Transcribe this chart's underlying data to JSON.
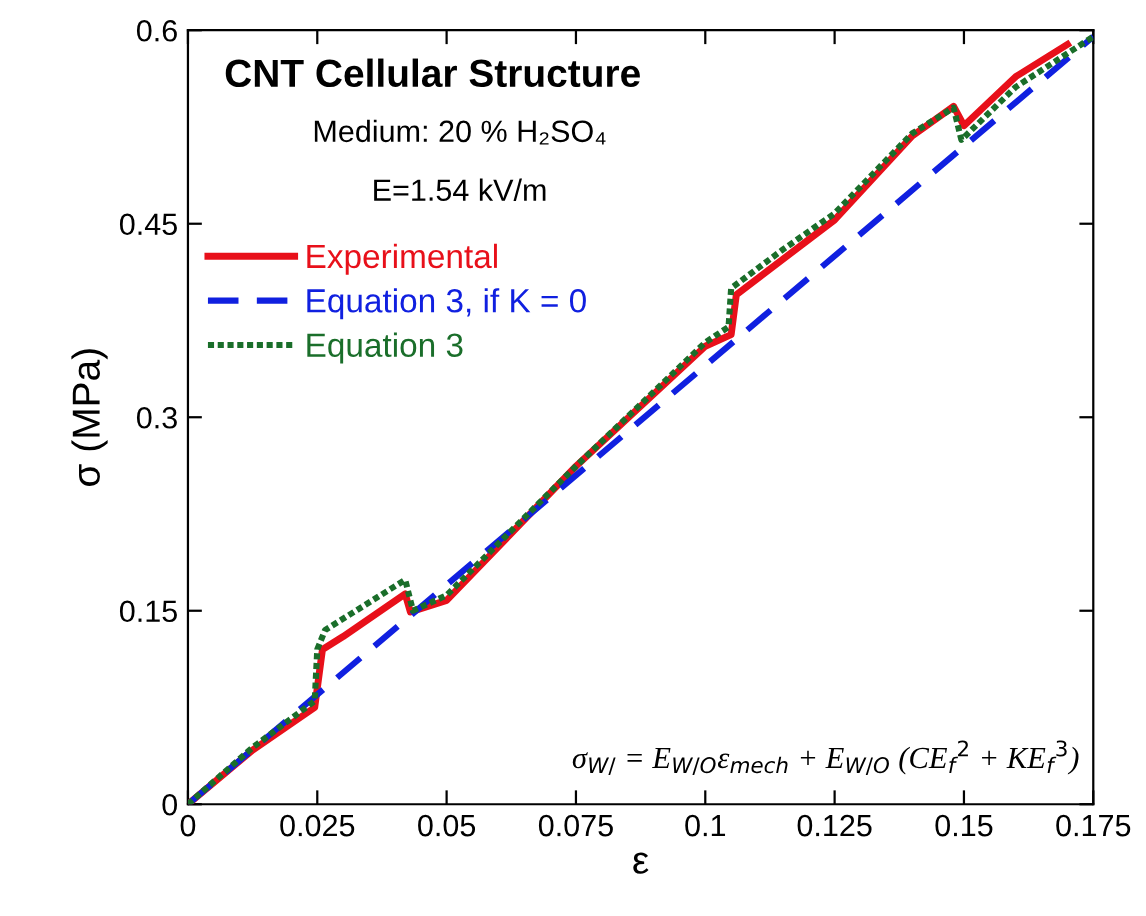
{
  "chart_data": {
    "type": "line",
    "title": "CNT Cellular Structure",
    "xlabel": "ε",
    "ylabel": "σ (MPa)",
    "annotations": [
      "Medium: 20 % H₂SO₄",
      "E=1.54 kV/m",
      "σ$_{W/}$ = E$_{W/O}$ε$_{mech}$ + E$_{W/O}$ (CE$_{f}$$^{2}$ + KE$_{f}$$^{3}$)"
    ],
    "series": [
      {
        "name": "Experimental",
        "color": "#e8101a",
        "line_style": "solid",
        "x": [
          0,
          0.0125,
          0.0245,
          0.026,
          0.03,
          0.042,
          0.043,
          0.05,
          0.075,
          0.1,
          0.105,
          0.106,
          0.125,
          0.14,
          0.148,
          0.15,
          0.16,
          0.17
        ],
        "values": [
          0,
          0.042,
          0.075,
          0.12,
          0.13,
          0.163,
          0.149,
          0.158,
          0.262,
          0.355,
          0.364,
          0.395,
          0.453,
          0.518,
          0.541,
          0.526,
          0.564,
          0.589
        ]
      },
      {
        "name": "Equation 3, if K = 0",
        "color": "#1020e0",
        "line_style": "dashed",
        "x": [
          0,
          0.175
        ],
        "values": [
          0,
          0.595
        ]
      },
      {
        "name": "Equation 3",
        "color": "#1a6e2a",
        "line_style": "dotted",
        "x": [
          0,
          0.0125,
          0.0245,
          0.025,
          0.0265,
          0.042,
          0.0435,
          0.05,
          0.075,
          0.1,
          0.1045,
          0.105,
          0.115,
          0.125,
          0.14,
          0.148,
          0.1495,
          0.16,
          0.175
        ],
        "values": [
          0,
          0.044,
          0.08,
          0.12,
          0.135,
          0.174,
          0.15,
          0.162,
          0.262,
          0.358,
          0.37,
          0.4,
          0.43,
          0.458,
          0.52,
          0.54,
          0.515,
          0.556,
          0.595
        ]
      }
    ],
    "xlim": [
      0,
      0.175
    ],
    "xticks": [
      0,
      0.025,
      0.05,
      0.075,
      0.1,
      0.125,
      0.15,
      0.175
    ],
    "ylim": [
      0,
      0.6
    ],
    "yticks": [
      0,
      0.15,
      0.3,
      0.45,
      0.6
    ],
    "legend": "top left"
  }
}
